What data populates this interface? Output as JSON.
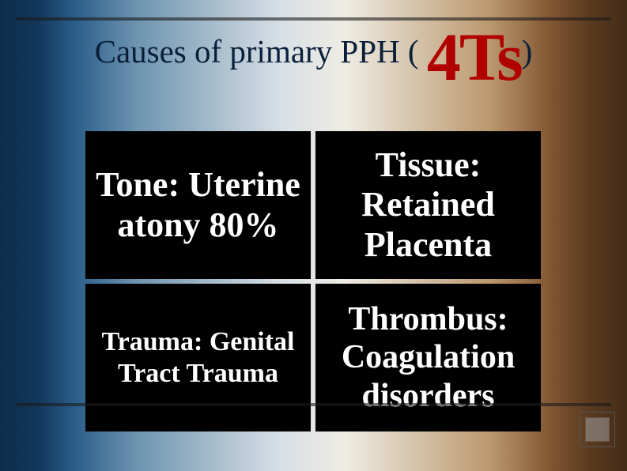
{
  "title": {
    "prefix": "Causes of primary PPH ( ",
    "accent": "4Ts",
    "suffix": ")"
  },
  "grid": {
    "type": "infographic",
    "rows": 2,
    "cols": 2,
    "cell_background": "#000000",
    "text_color": "#ffffff",
    "cells": [
      {
        "text": "Tone: Uterine atony 80%",
        "font_size": 44
      },
      {
        "text": "Tissue: Retained Placenta",
        "font_size": 44
      },
      {
        "text": "Trauma: Genital Tract Trauma",
        "font_size": 34
      },
      {
        "text": "Thrombus: Coagulation disorders",
        "font_size": 42
      }
    ]
  },
  "styling": {
    "slide_width": 793,
    "slide_height": 596,
    "title_color": "#0a1f3a",
    "accent_color": "#b00000",
    "rule_color": "#1a1a1a",
    "gradient_stops": [
      "#0d2d4a",
      "#12365a",
      "#2b5e8a",
      "#6f95b0",
      "#d9e0e6",
      "#eeece3",
      "#bc996f",
      "#805531",
      "#5a3a1f",
      "#442c18"
    ]
  }
}
